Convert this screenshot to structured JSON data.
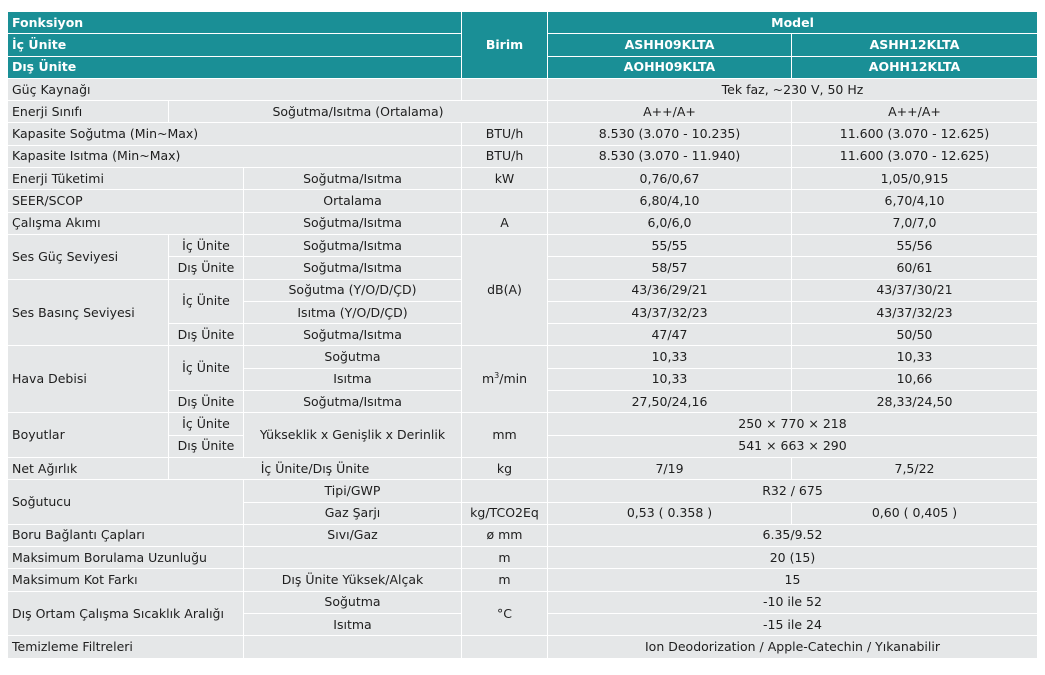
{
  "header": {
    "fonksiyon": "Fonksiyon",
    "ic_unite": "İç Ünite",
    "dis_unite": "Dış Ünite",
    "birim": "Birim",
    "model": "Model",
    "indoor_models": [
      "ASHH09KLTA",
      "ASHH12KLTA"
    ],
    "outdoor_models": [
      "AOHH09KLTA",
      "AOHH12KLTA"
    ]
  },
  "rows": {
    "guc_kaynagi": {
      "label": "Güç Kaynağı",
      "value": "Tek faz, ~230 V, 50 Hz"
    },
    "enerji_sinifi": {
      "label": "Enerji Sınıfı",
      "sub": "Soğutma/Isıtma (Ortalama)",
      "v1": "A++/A+",
      "v2": "A++/A+"
    },
    "kap_sogutma": {
      "label": "Kapasite Soğutma (Min~Max)",
      "unit": "BTU/h",
      "v1": "8.530 (3.070 - 10.235)",
      "v2": "11.600 (3.070 - 12.625)"
    },
    "kap_isitma": {
      "label": "Kapasite Isıtma (Min~Max)",
      "unit": "BTU/h",
      "v1": "8.530 (3.070 - 11.940)",
      "v2": "11.600 (3.070 - 12.625)"
    },
    "enerji_tuketimi": {
      "label": "Enerji Tüketimi",
      "sub": "Soğutma/Isıtma",
      "unit": "kW",
      "v1": "0,76/0,67",
      "v2": "1,05/0,915"
    },
    "seer_scop": {
      "label": "SEER/SCOP",
      "sub": "Ortalama",
      "v1": "6,80/4,10",
      "v2": "6,70/4,10"
    },
    "calisma_akimi": {
      "label": "Çalışma Akımı",
      "sub": "Soğutma/Isıtma",
      "unit": "A",
      "v1": "6,0/6,0",
      "v2": "7,0/7,0"
    },
    "ses_guc": {
      "label": "Ses Güç Seviyesi",
      "ic_label": "İç Ünite",
      "ic_sub": "Soğutma/Isıtma",
      "ic_v1": "55/55",
      "ic_v2": "55/56",
      "dis_label": "Dış Ünite",
      "dis_sub": "Soğutma/Isıtma",
      "dis_v1": "58/57",
      "dis_v2": "60/61"
    },
    "ses_basinc": {
      "label": "Ses Basınç Seviyesi",
      "unit": "dB(A)",
      "ic_label": "İç Ünite",
      "sog_sub": "Soğutma (Y/O/D/ÇD)",
      "sog_v1": "43/36/29/21",
      "sog_v2": "43/37/30/21",
      "isi_sub": "Isıtma (Y/O/D/ÇD)",
      "isi_v1": "43/37/32/23",
      "isi_v2": "43/37/32/23",
      "dis_label": "Dış Ünite",
      "dis_sub": "Soğutma/Isıtma",
      "dis_v1": "47/47",
      "dis_v2": "50/50"
    },
    "hava_debisi": {
      "label": "Hava Debisi",
      "unit_base": "m",
      "unit_sup": "3",
      "unit_rest": "/min",
      "ic_label": "İç Ünite",
      "sog_sub": "Soğutma",
      "sog_v1": "10,33",
      "sog_v2": "10,33",
      "isi_sub": "Isıtma",
      "isi_v1": "10,33",
      "isi_v2": "10,66",
      "dis_label": "Dış Ünite",
      "dis_sub": "Soğutma/Isıtma",
      "dis_v1": "27,50/24,16",
      "dis_v2": "28,33/24,50"
    },
    "boyutlar": {
      "label": "Boyutlar",
      "sub": "Yükseklik x Genişlik x Derinlik",
      "unit": "mm",
      "ic_label": "İç Ünite",
      "ic_value": "250 × 770 × 218",
      "dis_label": "Dış Ünite",
      "dis_value": "541 × 663 × 290"
    },
    "net_agirlik": {
      "label": "Net Ağırlık",
      "sub": "İç Ünite/Dış Ünite",
      "unit": "kg",
      "v1": "7/19",
      "v2": "7,5/22"
    },
    "sogutucu": {
      "label": "Soğutucu",
      "tip_sub": "Tipi/GWP",
      "tip_value": "R32 / 675",
      "gaz_sub": "Gaz Şarjı",
      "gaz_unit": "kg/TCO2Eq",
      "gaz_v1": "0,53 ( 0.358 )",
      "gaz_v2": "0,60 ( 0,405 )"
    },
    "boru": {
      "label": "Boru Bağlantı Çapları",
      "sub": "Sıvı/Gaz",
      "unit": "ø mm",
      "value": "6.35/9.52"
    },
    "max_boru": {
      "label": "Maksimum Borulama Uzunluğu",
      "unit": "m",
      "value": "20 (15)"
    },
    "max_kot": {
      "label": "Maksimum Kot Farkı",
      "sub": "Dış Ünite Yüksek/Alçak",
      "unit": "m",
      "value": "15"
    },
    "dis_ortam": {
      "label": "Dış Ortam Çalışma Sıcaklık Aralığı",
      "unit": "°C",
      "sog_sub": "Soğutma",
      "sog_value": "-10 ile 52",
      "isi_sub": "Isıtma",
      "isi_value": "-15 ile 24"
    },
    "temizleme": {
      "label": "Temizleme Filtreleri",
      "value": "Ion Deodorization / Apple-Catechin / Yıkanabilir"
    }
  },
  "colors": {
    "header_bg": "#1a8f96",
    "header_text": "#ffffff",
    "row_shade": "#e5e7e8",
    "row_light": "#ffffff",
    "text": "#1e1e1e"
  }
}
